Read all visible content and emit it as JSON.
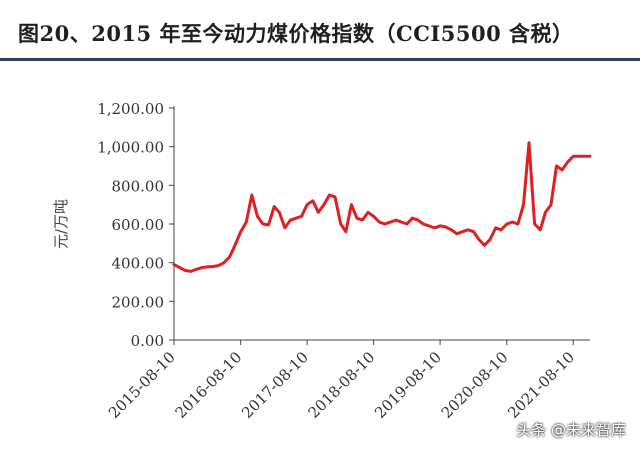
{
  "title": "图20、2015 年至今动力煤价格指数（CCI5500 含税）",
  "watermark": "头条 @未来智库",
  "chart_data": {
    "type": "line",
    "title": "图20、2015 年至今动力煤价格指数（CCI5500 含税）",
    "ylabel": "元/万吨",
    "xlabel": "",
    "ylim": [
      0,
      1200
    ],
    "yticks": [
      0,
      200,
      400,
      600,
      800,
      1000,
      1200
    ],
    "ytick_labels": [
      "0.00",
      "200.00",
      "400.00",
      "600.00",
      "800.00",
      "1,000.00",
      "1,200.00"
    ],
    "xlim": [
      "2015-08-10",
      "2021-11-10"
    ],
    "xticks": [
      "2015-08-10",
      "2016-08-10",
      "2017-08-10",
      "2018-08-10",
      "2019-08-10",
      "2020-08-10",
      "2021-08-10"
    ],
    "grid": false,
    "line_color": "#e02020",
    "series": [
      {
        "x": [
          "2015-08-10",
          "2015-09-10",
          "2015-10-10",
          "2015-11-10",
          "2015-12-10",
          "2016-01-10",
          "2016-02-10",
          "2016-03-10",
          "2016-04-10",
          "2016-05-10",
          "2016-06-10",
          "2016-07-10",
          "2016-08-10",
          "2016-09-10",
          "2016-10-10",
          "2016-11-10",
          "2016-12-10",
          "2017-01-10",
          "2017-02-10",
          "2017-03-10",
          "2017-04-10",
          "2017-05-10",
          "2017-06-10",
          "2017-07-10",
          "2017-08-10",
          "2017-09-10",
          "2017-10-10",
          "2017-11-10",
          "2017-12-10",
          "2018-01-10",
          "2018-02-10",
          "2018-03-10",
          "2018-04-10",
          "2018-05-10",
          "2018-06-10",
          "2018-07-10",
          "2018-08-10",
          "2018-09-10",
          "2018-10-10",
          "2018-11-10",
          "2018-12-10",
          "2019-01-10",
          "2019-02-10",
          "2019-03-10",
          "2019-04-10",
          "2019-05-10",
          "2019-06-10",
          "2019-07-10",
          "2019-08-10",
          "2019-09-10",
          "2019-10-10",
          "2019-11-10",
          "2019-12-10",
          "2020-01-10",
          "2020-02-10",
          "2020-03-10",
          "2020-04-10",
          "2020-05-10",
          "2020-06-10",
          "2020-07-10",
          "2020-08-10",
          "2020-09-10",
          "2020-10-10",
          "2020-11-10",
          "2020-12-10",
          "2021-01-10",
          "2021-02-10",
          "2021-03-10",
          "2021-04-10",
          "2021-05-10",
          "2021-06-10",
          "2021-07-10",
          "2021-08-10",
          "2021-09-10",
          "2021-10-10",
          "2021-11-10"
        ],
        "y": [
          390,
          375,
          360,
          355,
          365,
          375,
          378,
          380,
          385,
          400,
          430,
          490,
          560,
          610,
          750,
          640,
          600,
          595,
          690,
          660,
          580,
          620,
          630,
          640,
          700,
          720,
          660,
          700,
          750,
          740,
          600,
          560,
          700,
          630,
          620,
          660,
          640,
          610,
          600,
          610,
          620,
          610,
          600,
          630,
          620,
          600,
          590,
          580,
          590,
          585,
          570,
          550,
          560,
          570,
          560,
          520,
          490,
          520,
          580,
          570,
          600,
          610,
          600,
          700,
          1020,
          600,
          570,
          660,
          700,
          900,
          880,
          920,
          950,
          950,
          950,
          950
        ]
      }
    ]
  }
}
